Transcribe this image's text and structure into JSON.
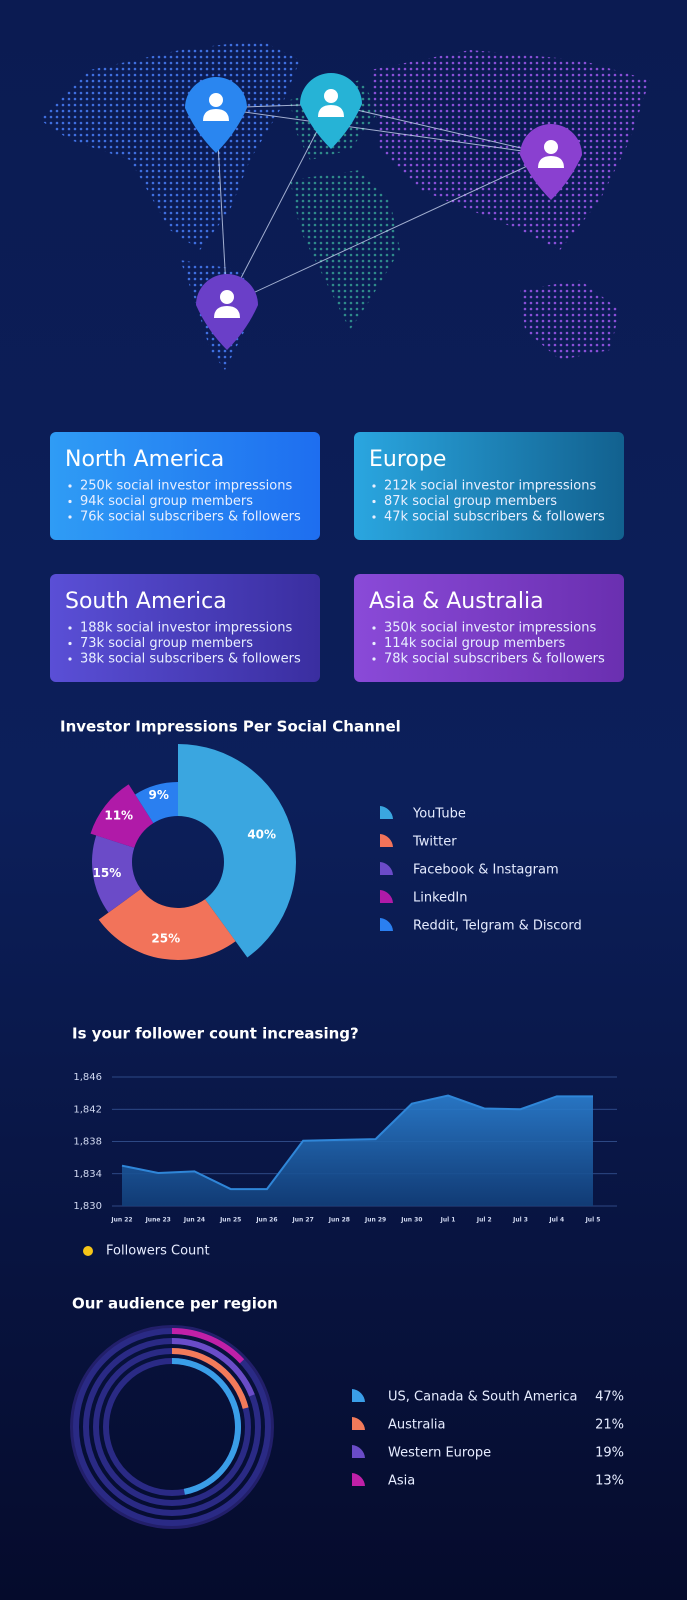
{
  "regions": [
    {
      "title": "North America",
      "items": [
        "250k social investor impressions",
        "94k social group members",
        "76k social subscribers & followers"
      ]
    },
    {
      "title": "Europe",
      "items": [
        "212k social investor impressions",
        "87k social group members",
        "47k social subscribers & followers"
      ]
    },
    {
      "title": "South America",
      "items": [
        "188k social investor impressions",
        "73k social group members",
        "38k social subscribers & followers"
      ]
    },
    {
      "title": "Asia & Australia",
      "items": [
        "350k social investor impressions",
        "114k social group members",
        "78k social subscribers & followers"
      ]
    }
  ],
  "chart_data": [
    {
      "type": "donut",
      "title": "Investor Impressions Per Social Channel",
      "categories": [
        "YouTube",
        "Twitter",
        "Facebook & Instagram",
        "LinkedIn",
        "Reddit, Telgram & Discord"
      ],
      "values": [
        40,
        25,
        15,
        11,
        9
      ],
      "value_labels": [
        "40%",
        "25%",
        "15%",
        "11%",
        "9%"
      ],
      "colors": [
        "#3aa6e0",
        "#f2735a",
        "#6b4bc8",
        "#b01aa8",
        "#2a7ff0"
      ]
    },
    {
      "type": "area",
      "title": "Is your follower count increasing?",
      "categories": [
        "Jun 22",
        "June 23",
        "Jun 24",
        "Jun 25",
        "Jun 26",
        "Jun 27",
        "Jun 28",
        "Jun 29",
        "Jun 30",
        "Jul 1",
        "Jul 2",
        "Jul 3",
        "Jul 4",
        "Jul 5"
      ],
      "series": [
        {
          "name": "Followers Count",
          "color": "#f5c518",
          "values": [
            1835,
            1834.1,
            1834.3,
            1832.1,
            1832.1,
            1838.1,
            1838.2,
            1838.3,
            1842.7,
            1843.7,
            1842.1,
            1842,
            1843.6,
            1843.6
          ]
        }
      ],
      "ylim": [
        1830,
        1846
      ],
      "yticks": [
        {
          "value": 1830,
          "label": "1,830"
        },
        {
          "value": 1834,
          "label": "1,834"
        },
        {
          "value": 1838,
          "label": "1,838"
        },
        {
          "value": 1842,
          "label": "1,842"
        },
        {
          "value": 1846,
          "label": "1,846"
        }
      ],
      "grid": true
    },
    {
      "type": "radial-bar",
      "title": "Our audience per region",
      "categories": [
        "US, Canada & South America",
        "Australia",
        "Western Europe",
        "Asia"
      ],
      "values": [
        47,
        21,
        19,
        13
      ],
      "value_labels": [
        "47%",
        "21%",
        "19%",
        "13%"
      ],
      "colors": [
        "#3a9ee8",
        "#f27a5a",
        "#6a4cc8",
        "#c020a8"
      ]
    }
  ]
}
